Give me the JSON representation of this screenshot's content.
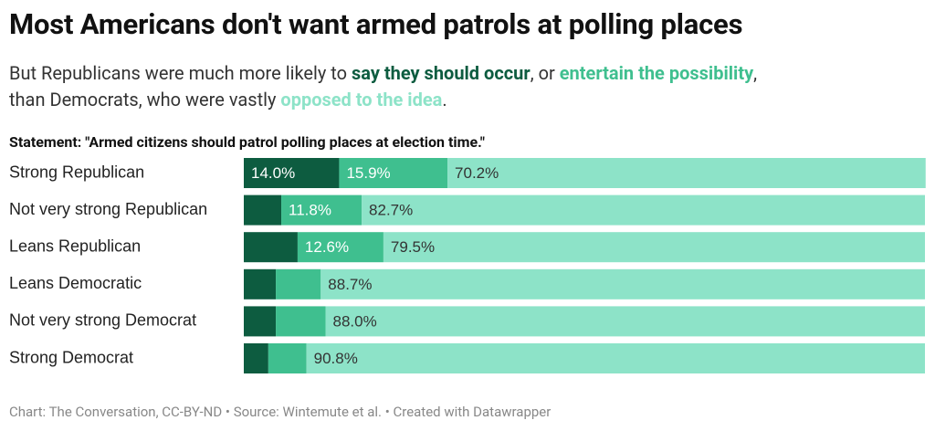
{
  "chart_data": {
    "type": "stacked-bar",
    "title": "Most Americans don't want armed patrols at polling places",
    "subtitle": [
      "But Republicans were much more likely to ",
      ", or ",
      ",",
      "than Democrats, who were vastly ",
      "."
    ],
    "statement": "Statement: \"Armed citizens should patrol polling places at election time.\"",
    "categories": [
      "Strong Republican",
      "Not very strong Republican",
      "Leans Republican",
      "Leans Democratic",
      "Not very strong Democrat",
      "Strong Democrat"
    ],
    "series": [
      {
        "name": "say they should occur",
        "color": "#0d5c40",
        "label_color": "#ffffff",
        "values": [
          14.0,
          5.5,
          7.9,
          4.7,
          4.7,
          3.6
        ],
        "value_labels": [
          "14.0%",
          null,
          null,
          null,
          null,
          null
        ]
      },
      {
        "name": "entertain the possibility",
        "color": "#3fbf8f",
        "label_color": "#ffffff",
        "values": [
          15.9,
          11.8,
          12.6,
          6.6,
          7.3,
          5.6
        ],
        "value_labels": [
          "15.9%",
          "11.8%",
          "12.6%",
          null,
          null,
          null
        ]
      },
      {
        "name": "opposed to the idea",
        "color": "#8de3c8",
        "label_color": "#333333",
        "values": [
          70.2,
          82.7,
          79.5,
          88.7,
          88.0,
          90.8
        ],
        "value_labels": [
          "70.2%",
          "82.7%",
          "79.5%",
          "88.7%",
          "88.0%",
          "90.8%"
        ]
      }
    ],
    "xlim": [
      0,
      100
    ],
    "footer": "Chart: The Conversation, CC-BY-ND • Source: Wintemute et al. • Created with Datawrapper"
  }
}
